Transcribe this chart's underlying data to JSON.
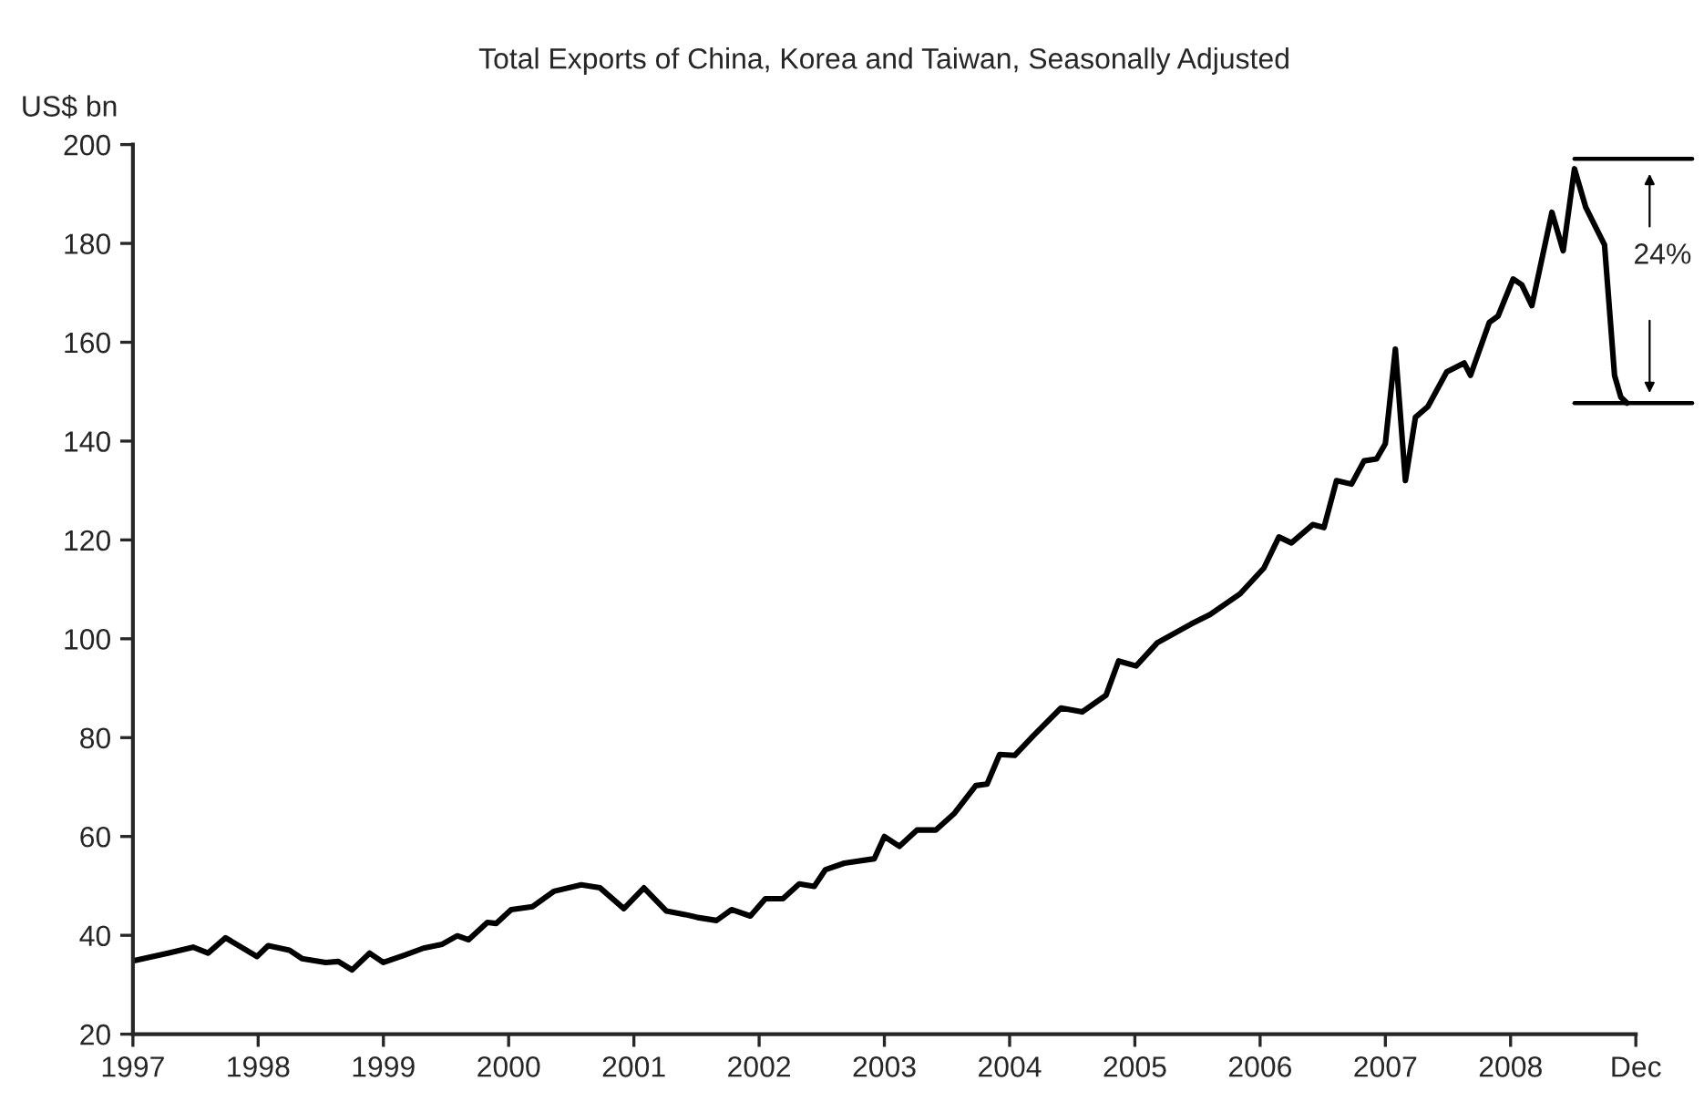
{
  "chart_data": {
    "type": "line",
    "title": "Total Exports of China, Korea and Taiwan, Seasonally Adjusted",
    "ylabel": "US$ bn",
    "x": [
      1997.0,
      1997.28,
      1997.48,
      1997.6,
      1997.74,
      1997.99,
      1998.08,
      1998.25,
      1998.35,
      1998.54,
      1998.64,
      1998.75,
      1998.89,
      1999.0,
      1999.17,
      1999.32,
      1999.47,
      1999.59,
      1999.68,
      1999.83,
      1999.9,
      2000.02,
      2000.19,
      2000.36,
      2000.58,
      2000.73,
      2000.92,
      2001.08,
      2001.26,
      2001.41,
      2001.51,
      2001.66,
      2001.78,
      2001.93,
      2002.05,
      2002.19,
      2002.32,
      2002.44,
      2002.53,
      2002.68,
      2002.92,
      2003.0,
      2003.12,
      2003.26,
      2003.41,
      2003.56,
      2003.73,
      2003.82,
      2003.92,
      2004.04,
      2004.19,
      2004.41,
      2004.58,
      2004.77,
      2004.87,
      2005.01,
      2005.18,
      2005.45,
      2005.6,
      2005.84,
      2006.03,
      2006.15,
      2006.25,
      2006.42,
      2006.51,
      2006.61,
      2006.73,
      2006.83,
      2006.93,
      2007.0,
      2007.08,
      2007.16,
      2007.24,
      2007.34,
      2007.49,
      2007.63,
      2007.68,
      2007.83,
      2007.9,
      2008.02,
      2008.09,
      2008.17,
      2008.33,
      2008.42,
      2008.51,
      2008.6,
      2008.75,
      2008.83,
      2008.88,
      2008.93
    ],
    "series": [
      {
        "color": "#000000",
        "values": [
          34.8,
          36.4,
          37.6,
          36.4,
          39.5,
          35.7,
          37.9,
          37.0,
          35.3,
          34.5,
          34.7,
          33.0,
          36.4,
          34.5,
          36.0,
          37.4,
          38.2,
          39.9,
          39.1,
          42.6,
          42.4,
          45.2,
          45.8,
          48.9,
          50.2,
          49.6,
          45.4,
          49.6,
          44.9,
          44.2,
          43.6,
          43.0,
          45.2,
          43.9,
          47.4,
          47.4,
          50.4,
          49.9,
          53.3,
          54.6,
          55.5,
          60.0,
          58.0,
          61.3,
          61.3,
          64.7,
          70.3,
          70.6,
          76.6,
          76.4,
          80.4,
          86.0,
          85.2,
          88.6,
          95.5,
          94.5,
          99.2,
          103.0,
          104.9,
          109.1,
          114.3,
          120.6,
          119.4,
          123.1,
          122.5,
          132.0,
          131.3,
          136.0,
          136.4,
          139.5,
          158.6,
          132.0,
          144.8,
          147.0,
          154.0,
          155.8,
          153.3,
          164.0,
          165.3,
          172.8,
          171.6,
          167.4,
          186.3,
          178.5,
          195.1,
          187.3,
          179.7,
          153.3,
          148.9,
          147.7
        ]
      }
    ],
    "xlim": [
      1997,
      2009
    ],
    "xticks": [
      1997,
      1998,
      1999,
      2000,
      2001,
      2002,
      2003,
      2004,
      2005,
      2006,
      2007,
      2008,
      {
        "value": 2009,
        "label": "Dec"
      }
    ],
    "ylim": [
      20,
      200
    ],
    "yticks": [
      20,
      40,
      60,
      80,
      100,
      120,
      140,
      160,
      180,
      200
    ],
    "annotations": [
      "24%"
    ],
    "grid": false,
    "legend": false,
    "marker": "none",
    "line_style": "solid"
  }
}
